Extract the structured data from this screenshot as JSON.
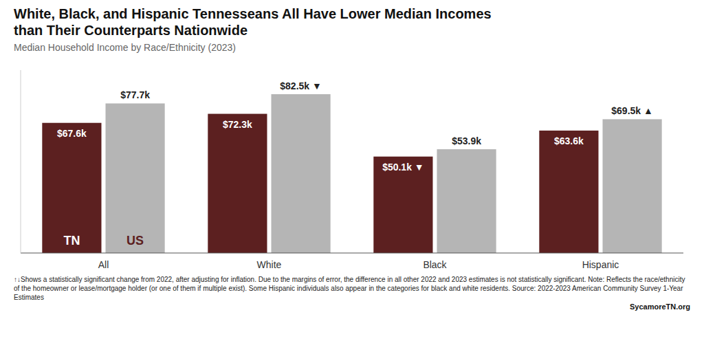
{
  "chart_data": {
    "type": "bar",
    "title": "White, Black, and Hispanic Tennesseans All Have Lower Median Incomes than Their Counterparts Nationwide",
    "subtitle": "Median Household Income by Race/Ethnicity (2023)",
    "categories": [
      "All",
      "White",
      "Black",
      "Hispanic"
    ],
    "series": [
      {
        "name": "TN",
        "color": "#5c2020",
        "values": [
          67600,
          72300,
          50100,
          63600
        ],
        "value_labels": [
          "$67.6k",
          "$72.3k",
          "$50.1k ▼",
          "$63.6k"
        ]
      },
      {
        "name": "US",
        "color": "#b5b5b5",
        "values": [
          77700,
          82500,
          53900,
          69500
        ],
        "value_labels": [
          "$77.7k",
          "$82.5k ▼",
          "$53.9k",
          "$69.5k ▲"
        ]
      }
    ],
    "ylim": [
      0,
      95000
    ],
    "grid": false,
    "data_labels": true,
    "tick_labels": "x",
    "footnote": "↑↓Shows a statistically significant change from 2022, after adjusting for inflation. Due to the margins of error, the difference in all other 2022 and 2023 estimates is not statistically significant. Note: Reflects the race/ethnicity of the homeowner or lease/mortgage holder (or one of them if multiple exist). Some Hispanic individuals also appear in the categories for black and white residents. Source: 2022-2023 American Community Survey 1-Year Estimates",
    "source": "SycamoreTN.org"
  }
}
